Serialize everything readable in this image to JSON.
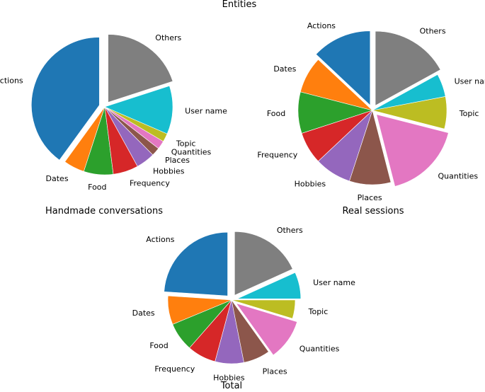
{
  "figure": {
    "title": "Entities"
  },
  "colors": {
    "Actions": "#1f77b4",
    "Dates": "#ff7f0e",
    "Food": "#2ca02c",
    "Frequency": "#d62728",
    "Hobbies": "#9467bd",
    "Places": "#8c564b",
    "Quantities": "#e377c2",
    "Topic": "#bcbd22",
    "User name": "#17becf",
    "Others": "#7f7f7f"
  },
  "chart_data": [
    {
      "type": "pie",
      "title": "Handmade conversations",
      "categories": [
        "Actions",
        "Dates",
        "Food",
        "Frequency",
        "Hobbies",
        "Places",
        "Quantities",
        "Topic",
        "User name",
        "Others"
      ],
      "values": [
        40,
        5,
        7,
        6,
        4.5,
        2,
        2,
        2,
        11.5,
        20
      ],
      "explode": [
        "Actions",
        "Others"
      ],
      "start_angle_deg": 90,
      "direction": "counterclockwise"
    },
    {
      "type": "pie",
      "title": "Real sessions",
      "categories": [
        "Actions",
        "Dates",
        "Food",
        "Frequency",
        "Hobbies",
        "Places",
        "Quantities",
        "Topic",
        "User name",
        "Others"
      ],
      "values": [
        13,
        8,
        9,
        7,
        8,
        9,
        17,
        7,
        5,
        17
      ],
      "explode": [
        "Actions",
        "Others",
        "Quantities"
      ],
      "start_angle_deg": 90,
      "direction": "counterclockwise"
    },
    {
      "type": "pie",
      "title": "Total",
      "categories": [
        "Actions",
        "Dates",
        "Food",
        "Frequency",
        "Hobbies",
        "Places",
        "Quantities",
        "Topic",
        "User name",
        "Others"
      ],
      "values": [
        23,
        7,
        7,
        7,
        7,
        6.5,
        10,
        4.5,
        6.5,
        17.5
      ],
      "explode": [
        "Actions",
        "Others",
        "Quantities",
        "User name"
      ],
      "start_angle_deg": 90,
      "direction": "counterclockwise"
    }
  ]
}
